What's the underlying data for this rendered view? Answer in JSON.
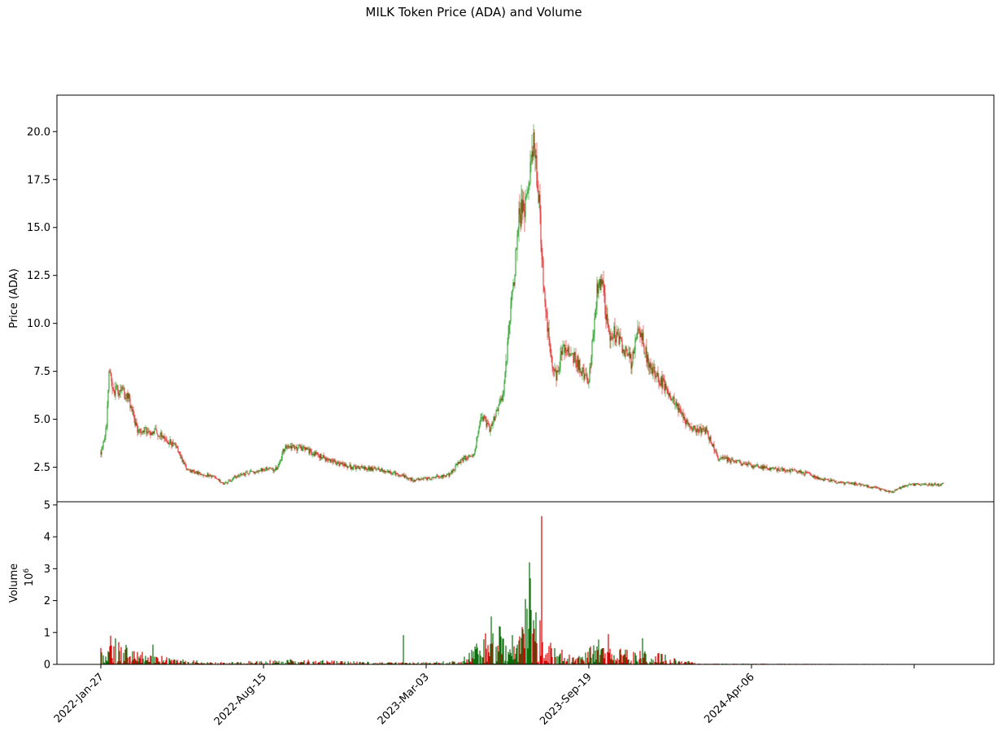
{
  "chart_data": {
    "type": "candlestick",
    "title": "MILK Token Price (ADA) and Volume",
    "price_panel": {
      "ylabel": "Price (ADA)",
      "yticks": [
        "2.5",
        "5.0",
        "7.5",
        "10.0",
        "12.5",
        "15.0",
        "17.5",
        "20.0"
      ],
      "ylim": [
        0.7,
        21.9
      ],
      "grid": false
    },
    "volume_panel": {
      "ylabel": "Volume",
      "scale_label": "10^6",
      "yticks": [
        "0",
        "1",
        "2",
        "3",
        "4",
        "5"
      ],
      "ylim": [
        0,
        5.1
      ],
      "grid": false
    },
    "x_ticks": [
      "2022-Jan-27",
      "2022-Aug-15",
      "2023-Mar-03",
      "2023-Sep-19",
      "2024-Apr-06"
    ],
    "x_start": "2022-01-27",
    "x_end": "2024-11-28",
    "up_color": "#1a9a1a",
    "down_color": "#e01f1f",
    "volume_up_color": "#0a6e0a",
    "volume_down_color": "#dd0000",
    "price_anchors": [
      [
        "2022-01-27",
        3.3
      ],
      [
        "2022-02-03",
        4.6
      ],
      [
        "2022-02-06",
        7.6
      ],
      [
        "2022-02-12",
        6.5
      ],
      [
        "2022-03-01",
        6.3
      ],
      [
        "2022-03-12",
        4.5
      ],
      [
        "2022-04-07",
        4.3
      ],
      [
        "2022-04-28",
        3.6
      ],
      [
        "2022-05-15",
        2.3
      ],
      [
        "2022-06-15",
        2.0
      ],
      [
        "2022-06-27",
        1.6
      ],
      [
        "2022-07-15",
        2.1
      ],
      [
        "2022-08-15",
        2.4
      ],
      [
        "2022-09-01",
        2.4
      ],
      [
        "2022-09-10",
        3.6
      ],
      [
        "2022-10-01",
        3.5
      ],
      [
        "2022-11-01",
        2.9
      ],
      [
        "2022-12-01",
        2.5
      ],
      [
        "2023-01-01",
        2.4
      ],
      [
        "2023-02-01",
        2.1
      ],
      [
        "2023-02-15",
        1.8
      ],
      [
        "2023-03-03",
        1.9
      ],
      [
        "2023-04-01",
        2.1
      ],
      [
        "2023-04-15",
        2.9
      ],
      [
        "2023-05-01",
        3.2
      ],
      [
        "2023-05-10",
        5.3
      ],
      [
        "2023-05-20",
        4.4
      ],
      [
        "2023-06-05",
        6.2
      ],
      [
        "2023-06-15",
        10.5
      ],
      [
        "2023-06-25",
        15.5
      ],
      [
        "2023-07-05",
        16.5
      ],
      [
        "2023-07-12",
        19.5
      ],
      [
        "2023-07-19",
        17.0
      ],
      [
        "2023-07-25",
        12.5
      ],
      [
        "2023-08-01",
        9.0
      ],
      [
        "2023-08-10",
        7.0
      ],
      [
        "2023-08-18",
        8.8
      ],
      [
        "2023-09-01",
        8.2
      ],
      [
        "2023-09-19",
        7.0
      ],
      [
        "2023-09-29",
        11.8
      ],
      [
        "2023-10-05",
        12.2
      ],
      [
        "2023-10-15",
        9.0
      ],
      [
        "2023-10-20",
        9.5
      ],
      [
        "2023-11-10",
        8.0
      ],
      [
        "2023-11-20",
        9.8
      ],
      [
        "2023-12-01",
        8.0
      ],
      [
        "2024-01-01",
        6.0
      ],
      [
        "2024-01-20",
        4.6
      ],
      [
        "2024-02-10",
        4.4
      ],
      [
        "2024-02-25",
        3.0
      ],
      [
        "2024-03-15",
        2.8
      ],
      [
        "2024-04-06",
        2.6
      ],
      [
        "2024-05-01",
        2.4
      ],
      [
        "2024-06-01",
        2.3
      ],
      [
        "2024-07-01",
        1.9
      ],
      [
        "2024-07-20",
        1.7
      ],
      [
        "2024-08-20",
        1.6
      ],
      [
        "2024-09-25",
        1.2
      ],
      [
        "2024-10-15",
        1.6
      ],
      [
        "2024-11-28",
        1.6
      ]
    ],
    "volume_envelope": [
      [
        "2022-01-27",
        0.5
      ],
      [
        "2022-02-05",
        0.7
      ],
      [
        "2022-03-15",
        0.3
      ],
      [
        "2022-05-01",
        0.12
      ],
      [
        "2022-07-01",
        0.05
      ],
      [
        "2022-09-15",
        0.12
      ],
      [
        "2022-11-01",
        0.1
      ],
      [
        "2023-01-01",
        0.05
      ],
      [
        "2023-03-03",
        0.05
      ],
      [
        "2023-04-15",
        0.1
      ],
      [
        "2023-05-15",
        0.7
      ],
      [
        "2023-06-15",
        1.0
      ],
      [
        "2023-07-10",
        1.6
      ],
      [
        "2023-07-30",
        0.6
      ],
      [
        "2023-09-01",
        0.15
      ],
      [
        "2023-10-01",
        0.6
      ],
      [
        "2023-11-01",
        0.35
      ],
      [
        "2023-12-10",
        0.3
      ],
      [
        "2024-01-10",
        0.15
      ],
      [
        "2024-02-01",
        0.02
      ],
      [
        "2024-11-28",
        0.01
      ]
    ],
    "volume_spikes": [
      [
        "2022-02-08",
        0.9
      ],
      [
        "2022-04-01",
        0.62
      ],
      [
        "2023-02-03",
        0.92
      ],
      [
        "2023-05-22",
        1.5
      ],
      [
        "2023-07-03",
        2.05
      ],
      [
        "2023-07-08",
        3.2
      ],
      [
        "2023-07-09",
        2.7
      ],
      [
        "2023-07-23",
        4.65
      ],
      [
        "2023-10-13",
        0.95
      ],
      [
        "2023-11-24",
        0.82
      ]
    ]
  }
}
